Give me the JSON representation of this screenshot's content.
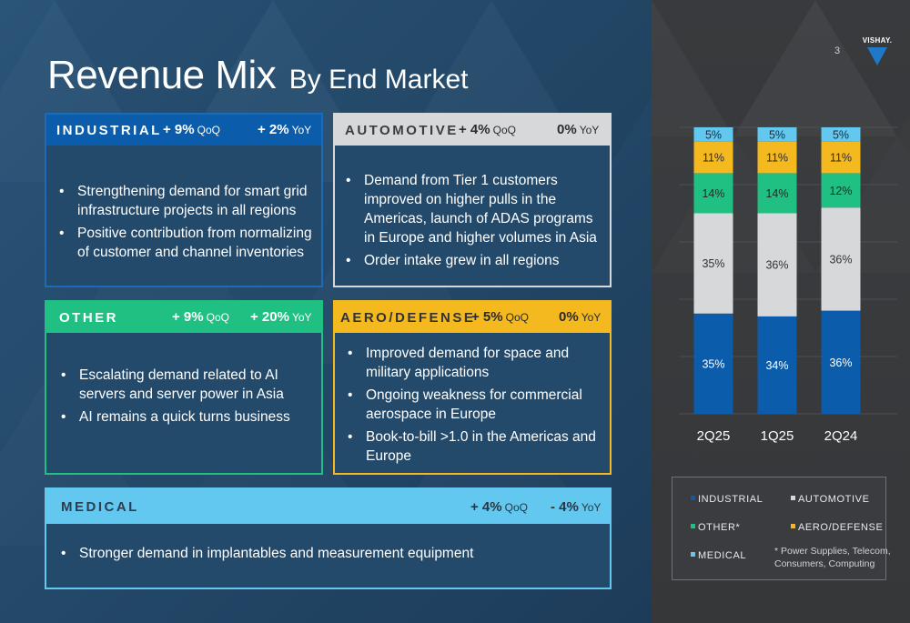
{
  "page": {
    "title_main": "Revenue Mix",
    "title_sub": "By End Market",
    "page_number": "3",
    "logo_text": "VISHAY."
  },
  "colors": {
    "industrial": "#0b5cab",
    "automotive": "#d6d8da",
    "other": "#20c083",
    "aero": "#f5b920",
    "medical": "#62c8f0"
  },
  "cards": {
    "industrial": {
      "name": "INDUSTRIAL",
      "qoq_value": "+ 9%",
      "qoq_unit": "QoQ",
      "yoy_value": "+ 2%",
      "yoy_unit": "YoY",
      "bullets": [
        "Strengthening demand for smart grid infrastructure projects in all regions",
        "Positive contribution from normalizing of customer and channel inventories"
      ]
    },
    "automotive": {
      "name": "AUTOMOTIVE",
      "qoq_value": "+ 4%",
      "qoq_unit": "QoQ",
      "yoy_value": "0%",
      "yoy_unit": "YoY",
      "bullets": [
        "Demand from Tier 1 customers improved on higher pulls in the Americas, launch of ADAS programs in Europe and higher volumes in Asia",
        "Order intake grew in all regions"
      ]
    },
    "other": {
      "name": "OTHER",
      "qoq_value": "+ 9%",
      "qoq_unit": "QoQ",
      "yoy_value": "+ 20%",
      "yoy_unit": "YoY",
      "bullets": [
        "Escalating demand related to AI servers and server power in Asia",
        "AI remains a quick turns business"
      ]
    },
    "aero": {
      "name": "AERO/DEFENSE",
      "qoq_value": "+ 5%",
      "qoq_unit": "QoQ",
      "yoy_value": "0%",
      "yoy_unit": "YoY",
      "bullets": [
        "Improved demand for space and military applications",
        "Ongoing weakness for commercial aerospace in Europe",
        "Book-to-bill >1.0 in the Americas and Europe"
      ]
    },
    "medical": {
      "name": "MEDICAL",
      "qoq_value": "+ 4%",
      "qoq_unit": "QoQ",
      "yoy_value": "- 4%",
      "yoy_unit": "YoY",
      "bullets": [
        "Stronger demand in implantables and measurement equipment"
      ]
    }
  },
  "chart_data": {
    "type": "bar",
    "stacked": true,
    "categories": [
      "2Q25",
      "1Q25",
      "2Q24"
    ],
    "ylim": [
      0,
      100
    ],
    "grid": true,
    "legend_position": "bottom",
    "series": [
      {
        "name": "INDUSTRIAL",
        "values": [
          35,
          34,
          36
        ],
        "labels": [
          "35%",
          "34%",
          "36%"
        ],
        "color": "#0b5cab",
        "label_color": "#ffffff"
      },
      {
        "name": "AUTOMOTIVE",
        "values": [
          35,
          36,
          36
        ],
        "labels": [
          "35%",
          "36%",
          "36%"
        ],
        "color": "#d6d8da",
        "label_color": "#333333"
      },
      {
        "name": "OTHER*",
        "values": [
          14,
          14,
          12
        ],
        "labels": [
          "14%",
          "14%",
          "12%"
        ],
        "color": "#20c083",
        "label_color": "#1e2a24"
      },
      {
        "name": "AERO/DEFENSE",
        "values": [
          11,
          11,
          11
        ],
        "labels": [
          "11%",
          "11%",
          "11%"
        ],
        "color": "#f5b920",
        "label_color": "#2a2a2a"
      },
      {
        "name": "MEDICAL",
        "values": [
          5,
          5,
          5
        ],
        "labels": [
          "5%",
          "5%",
          "5%"
        ],
        "color": "#62c8f0",
        "label_color": "#1e2d3a"
      }
    ],
    "footnote_line1": "* Power Supplies, Telecom,",
    "footnote_line2": "Consumers, Computing"
  }
}
